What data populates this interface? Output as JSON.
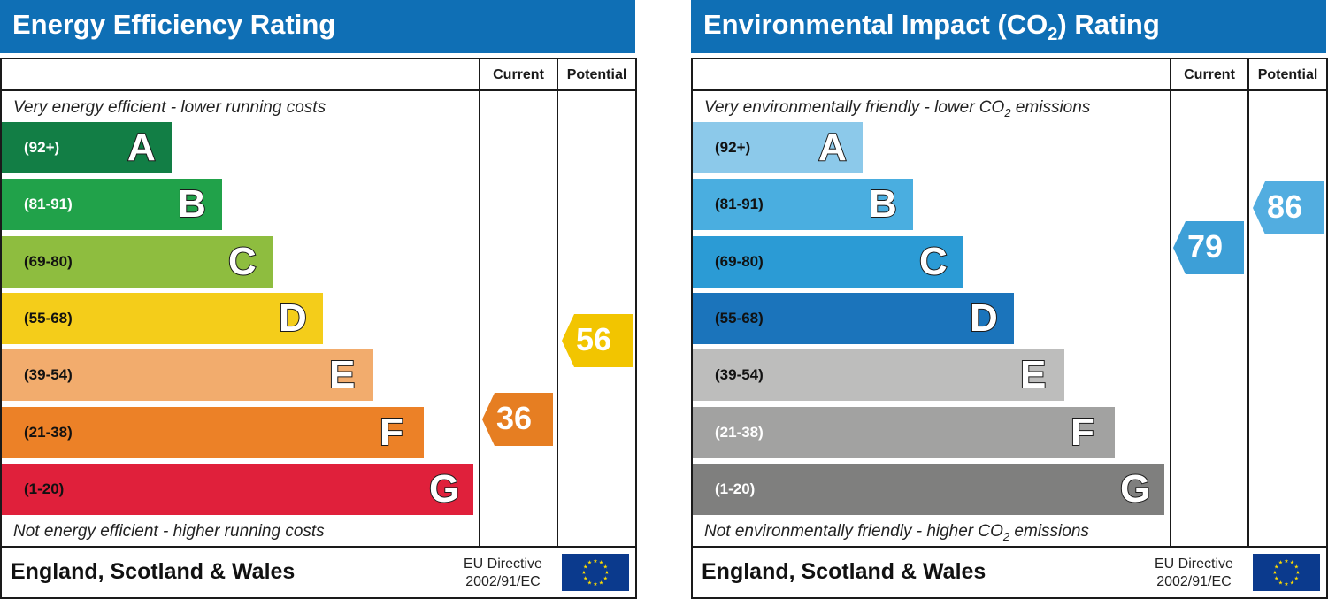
{
  "energy": {
    "title": "Energy Efficiency Rating",
    "col_current": "Current",
    "col_potential": "Potential",
    "top_desc": "Very energy efficient - lower running costs",
    "bottom_desc": "Not energy efficient - higher running costs",
    "country": "England, Scotland & Wales",
    "eu_line1": "EU Directive",
    "eu_line2": "2002/91/EC",
    "current_value": "36",
    "potential_value": "56",
    "current_color": "#e67e22",
    "potential_color": "#f2c500"
  },
  "environment": {
    "title_main": "Environmental Impact (CO",
    "title_sub": "2",
    "title_end": ") Rating",
    "col_current": "Current",
    "col_potential": "Potential",
    "top_desc_main": "Very environmentally friendly - lower CO",
    "top_desc_sub": "2",
    "top_desc_end": " emissions",
    "bottom_desc_main": "Not environmentally friendly - higher CO",
    "bottom_desc_sub": "2",
    "bottom_desc_end": " emissions",
    "country": "England, Scotland & Wales",
    "eu_line1": "EU Directive",
    "eu_line2": "2002/91/EC",
    "current_value": "79",
    "potential_value": "86",
    "current_color": "#3d9fd7",
    "potential_color": "#52ade0"
  },
  "chart_data": [
    {
      "type": "bar",
      "title": "Energy Efficiency Rating",
      "categories": [
        "A",
        "B",
        "C",
        "D",
        "E",
        "F",
        "G"
      ],
      "ranges": [
        "(92+)",
        "(81-91)",
        "(69-80)",
        "(55-68)",
        "(39-54)",
        "(21-38)",
        "(1-20)"
      ],
      "colors": [
        "#127e45",
        "#21a24a",
        "#8ebd3f",
        "#f4cd1a",
        "#f2ac6d",
        "#ec8127",
        "#e0203b"
      ],
      "range_text_colors": [
        "#ffffff",
        "#ffffff",
        "#111111",
        "#111111",
        "#111111",
        "#111111",
        "#111111"
      ],
      "current": 36,
      "potential": 56
    },
    {
      "type": "bar",
      "title": "Environmental Impact (CO2) Rating",
      "categories": [
        "A",
        "B",
        "C",
        "D",
        "E",
        "F",
        "G"
      ],
      "ranges": [
        "(92+)",
        "(81-91)",
        "(69-80)",
        "(55-68)",
        "(39-54)",
        "(21-38)",
        "(1-20)"
      ],
      "colors": [
        "#8cc9ea",
        "#4aaee0",
        "#2b9bd5",
        "#1b74bb",
        "#bdbdbc",
        "#a2a2a1",
        "#7f7f7e"
      ],
      "range_text_colors": [
        "#111111",
        "#111111",
        "#111111",
        "#111111",
        "#111111",
        "#ffffff",
        "#ffffff"
      ],
      "current": 79,
      "potential": 86
    }
  ]
}
